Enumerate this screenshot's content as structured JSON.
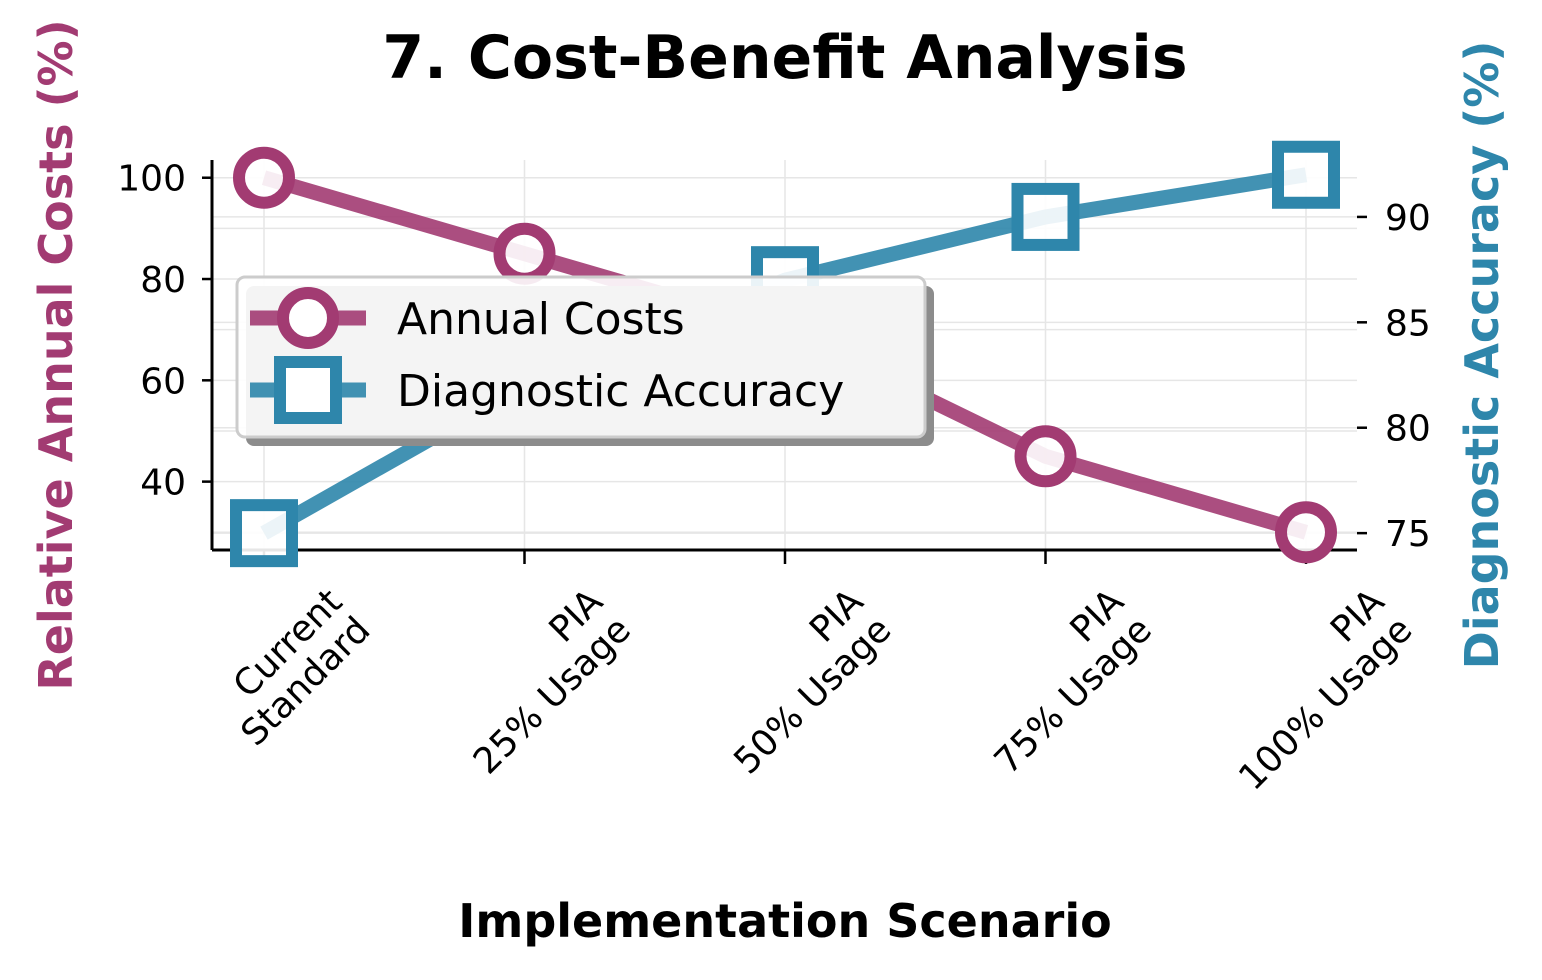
{
  "chart_data": {
    "type": "line",
    "title": "7. Cost-Benefit Analysis",
    "xlabel": "Implementation Scenario",
    "ylabel_left": "Relative Annual Costs (%)",
    "ylabel_right": "Diagnostic Accuracy (%)",
    "categories": [
      [
        "Current",
        "Standard"
      ],
      [
        "PIA",
        "25% Usage"
      ],
      [
        "PIA",
        "50% Usage"
      ],
      [
        "PIA",
        "75% Usage"
      ],
      [
        "PIA",
        "100% Usage"
      ]
    ],
    "ylim_left": [
      26.5,
      103.5
    ],
    "ylim_right": [
      74.2,
      92.7
    ],
    "yticks_left": [
      40,
      60,
      80,
      100
    ],
    "yticks_right": [
      75,
      80,
      85,
      90
    ],
    "grid": true,
    "legend_position": "center-left",
    "series": [
      {
        "name": "Annual Costs",
        "axis": "left",
        "marker": "circle",
        "color": "#A23B72",
        "values": [
          100,
          85,
          70,
          45,
          30
        ]
      },
      {
        "name": "Diagnostic Accuracy",
        "axis": "right",
        "marker": "square",
        "color": "#2E86AB",
        "values": [
          75,
          82,
          87,
          90,
          92
        ]
      }
    ]
  }
}
